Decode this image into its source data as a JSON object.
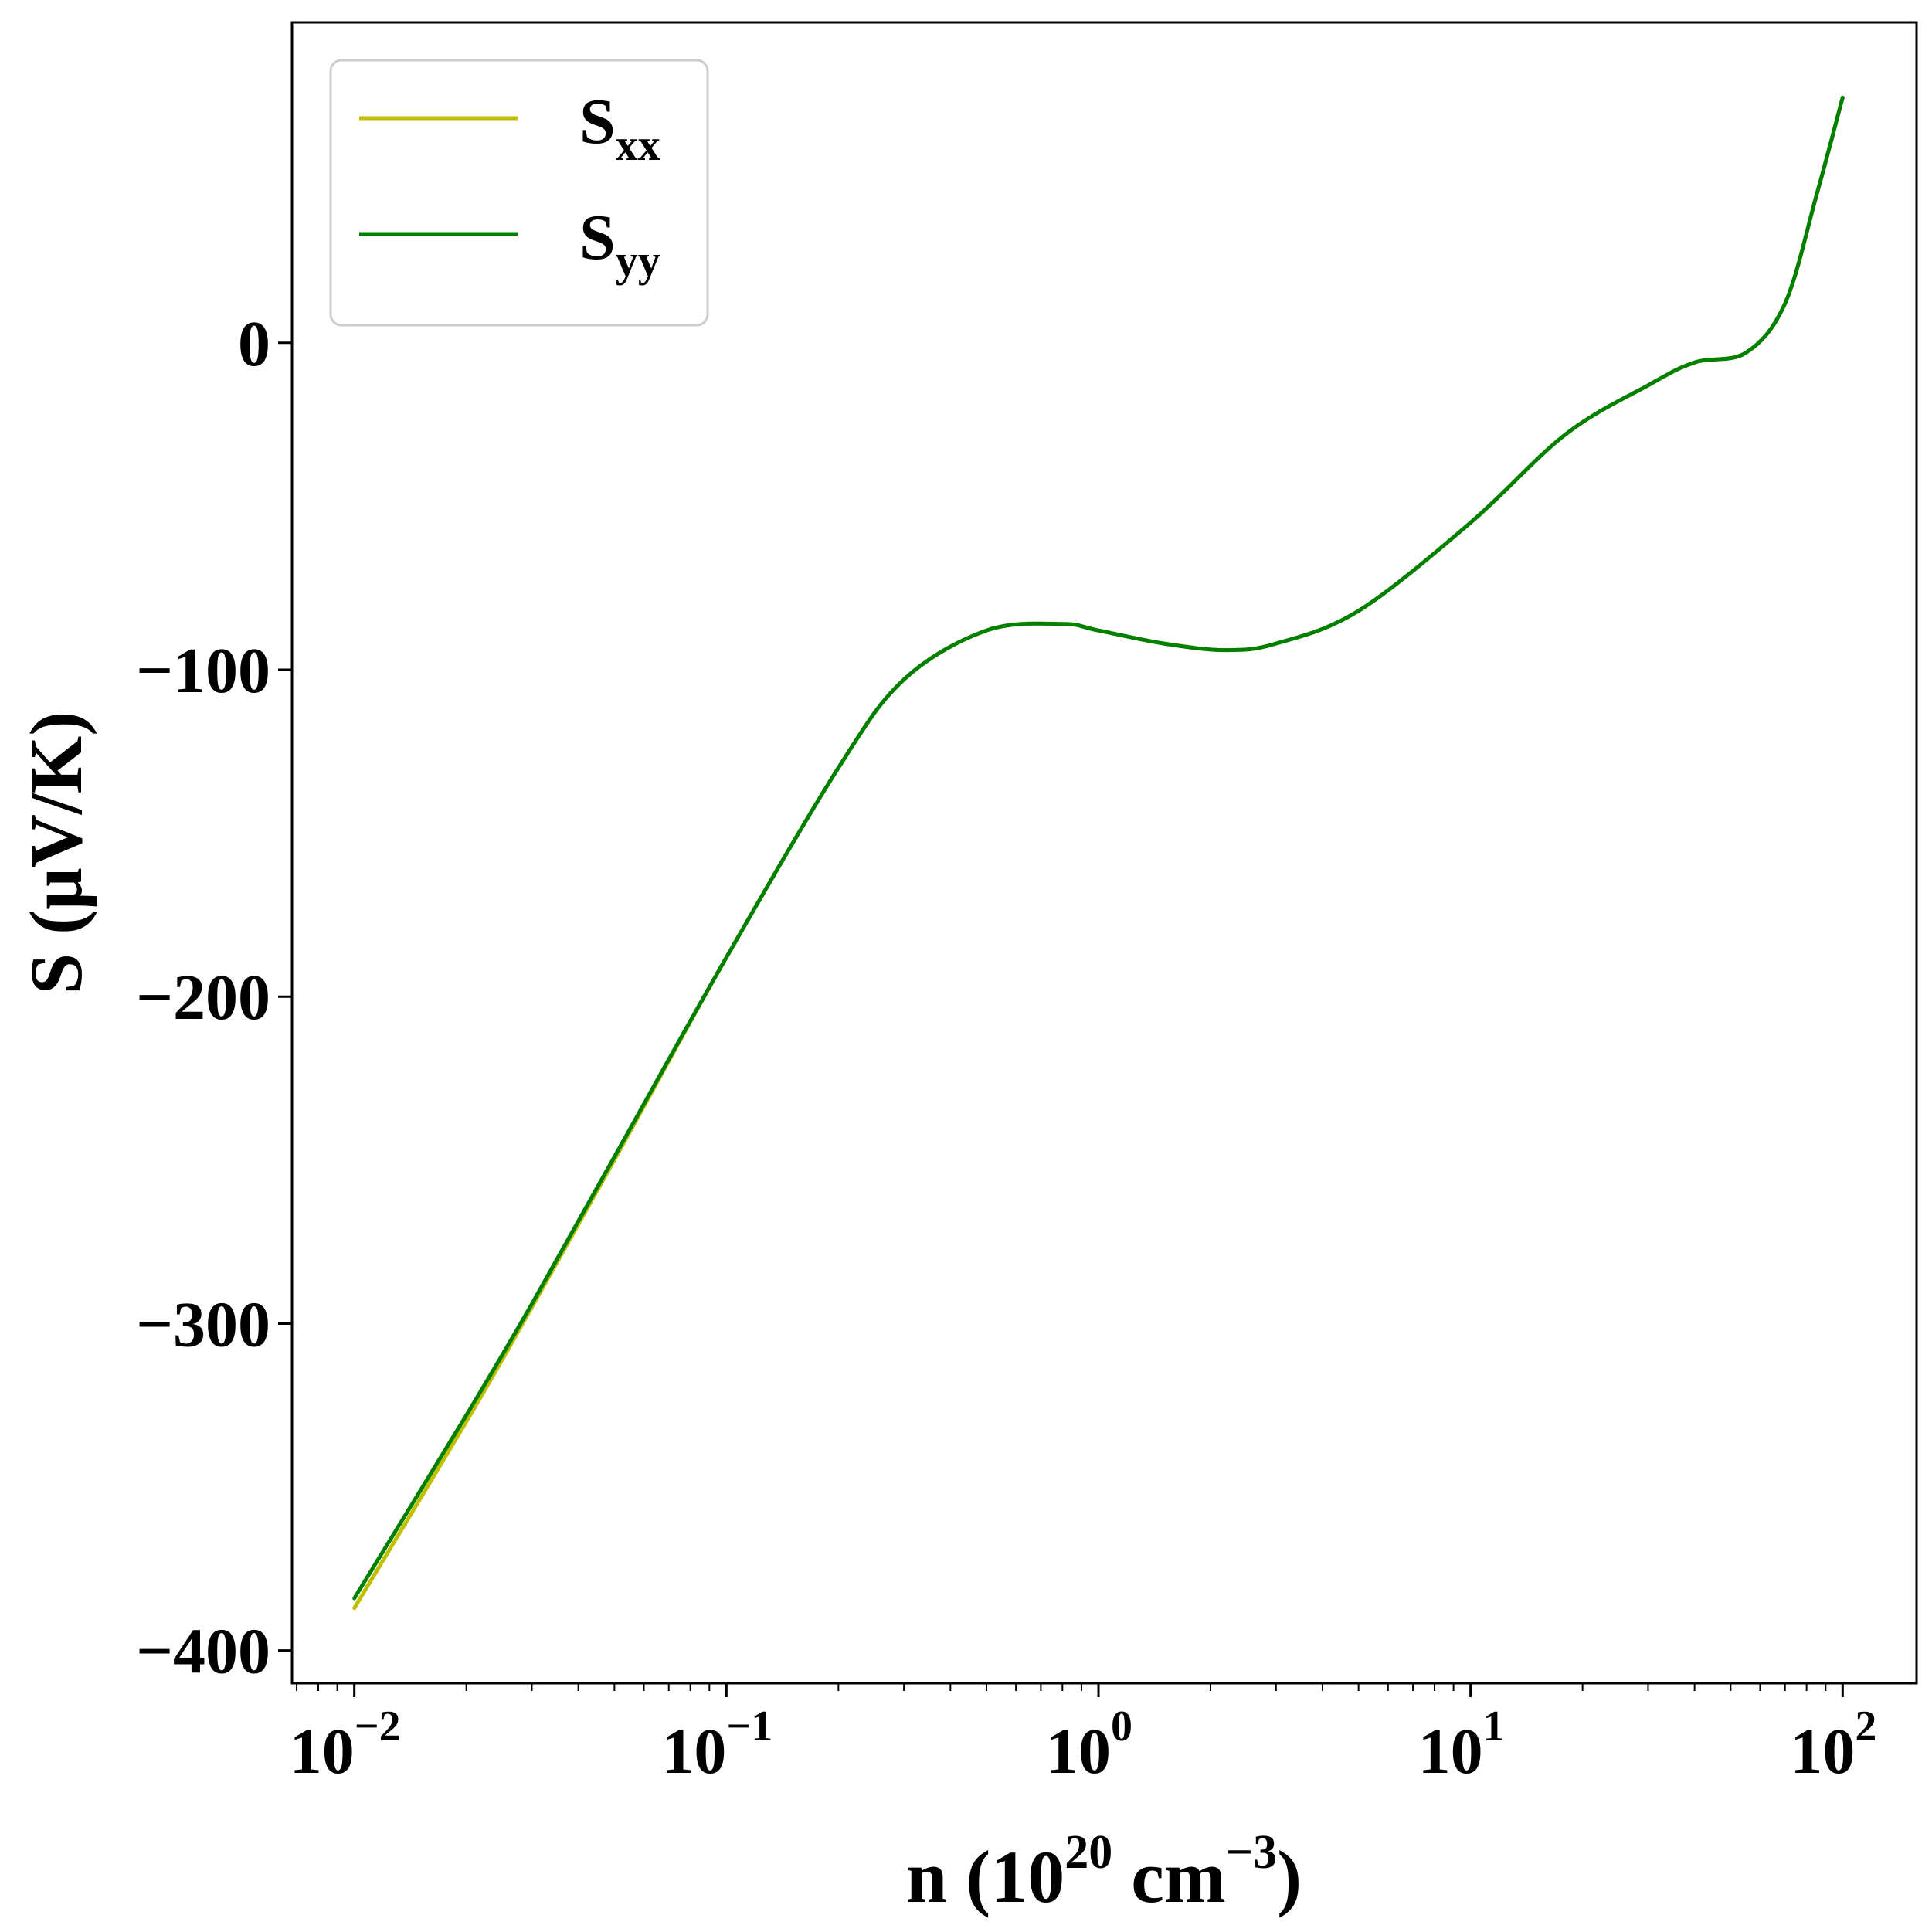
{
  "chart_data": {
    "type": "line",
    "xscale": "log",
    "xlim": [
      0.0068,
      158
    ],
    "ylim": [
      -410,
      98
    ],
    "xlabel": {
      "base": "n (10",
      "sup1": "20",
      "mid": " cm",
      "sup2": "−3",
      "end": ")"
    },
    "ylabel": "S (μV/K)",
    "x_ticks": [
      {
        "value": 0.01,
        "base": "10",
        "exp": "−2"
      },
      {
        "value": 0.1,
        "base": "10",
        "exp": "−1"
      },
      {
        "value": 1,
        "base": "10",
        "exp": "0"
      },
      {
        "value": 10,
        "base": "10",
        "exp": "1"
      },
      {
        "value": 100,
        "base": "10",
        "exp": "2"
      }
    ],
    "y_ticks": [
      {
        "value": 0,
        "label": "0"
      },
      {
        "value": -100,
        "label": "−100"
      },
      {
        "value": -200,
        "label": "−200"
      },
      {
        "value": -300,
        "label": "−300"
      },
      {
        "value": -400,
        "label": "−400"
      }
    ],
    "grid": false,
    "legend_position": "top-left",
    "series": [
      {
        "name": {
          "main": "S",
          "sub": "xx"
        },
        "color": "#bfbf00",
        "x": [
          0.01,
          0.02,
          0.03,
          0.05,
          0.1,
          0.2,
          0.3,
          0.5,
          0.8,
          1.0,
          1.5,
          2.2,
          3.0,
          5.0,
          10,
          18,
          30,
          40,
          55,
          70,
          85,
          100
        ],
        "y": [
          -387,
          -330,
          -295,
          -250,
          -188,
          -130,
          -103,
          -88,
          -86,
          -88,
          -92,
          -94,
          -92,
          -82,
          -55,
          -28,
          -13,
          -6,
          -3,
          12,
          45,
          75
        ]
      },
      {
        "name": {
          "main": "S",
          "sub": "yy"
        },
        "color": "#008000",
        "x": [
          0.01,
          0.02,
          0.03,
          0.05,
          0.1,
          0.2,
          0.3,
          0.5,
          0.8,
          1.0,
          1.5,
          2.2,
          3.0,
          5.0,
          10,
          18,
          30,
          40,
          55,
          70,
          85,
          100
        ],
        "y": [
          -384,
          -328,
          -294,
          -249,
          -188,
          -130,
          -103,
          -88,
          -86,
          -88,
          -92,
          -94,
          -92,
          -82,
          -55,
          -28,
          -13,
          -6,
          -3,
          12,
          45,
          75
        ]
      }
    ]
  }
}
